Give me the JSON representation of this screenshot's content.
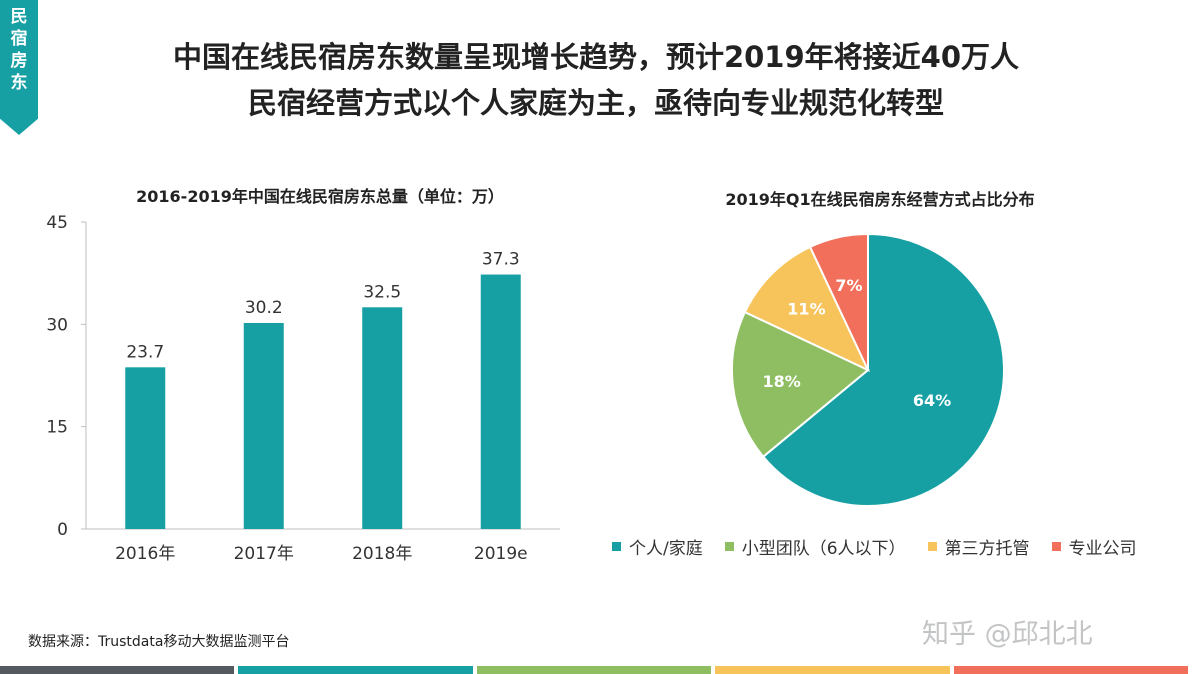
{
  "tag": {
    "line1": "民",
    "line2": "宿",
    "line3": "房",
    "line4": "东"
  },
  "headline": {
    "line1": "中国在线民宿房东数量呈现增长趋势，预计2019年将接近40万人",
    "line2": "民宿经营方式以个人家庭为主，亟待向专业规范化转型"
  },
  "colors": {
    "teal": "#17a0a4",
    "green": "#8fbe62",
    "yellow": "#f7c45c",
    "red": "#f2705b"
  },
  "chart_data": [
    {
      "type": "bar",
      "title": "2016-2019年中国在线民宿房东总量（单位：万）",
      "categories": [
        "2016年",
        "2017年",
        "2018年",
        "2019e"
      ],
      "values": [
        23.7,
        30.2,
        32.5,
        37.3
      ],
      "value_labels": [
        "23.7",
        "30.2",
        "32.5",
        "37.3"
      ],
      "ylim": [
        0,
        45
      ],
      "yticks": [
        "0",
        "15",
        "30",
        "45"
      ],
      "ytick_values": [
        0,
        15,
        30,
        45
      ],
      "color": "#17a0a4",
      "grid": false
    },
    {
      "type": "pie",
      "title": "2019年Q1在线民宿房东经营方式占比分布",
      "labels": [
        "个人/家庭",
        "小型团队（6人以下）",
        "第三方托管",
        "专业公司"
      ],
      "values": [
        64,
        18,
        11,
        7
      ],
      "value_labels": [
        "64%",
        "18%",
        "11%",
        "7%"
      ],
      "colors": [
        "#17a0a4",
        "#8fbe62",
        "#f7c45c",
        "#f2705b"
      ],
      "legend": "bottom"
    }
  ],
  "source": "数据来源：Trustdata移动大数据监测平台",
  "watermark": "知乎 @邱北北"
}
